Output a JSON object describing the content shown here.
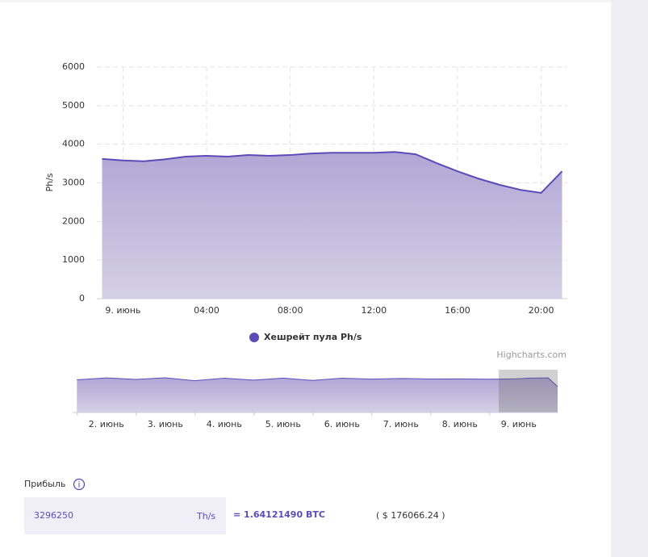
{
  "chart_data": [
    {
      "type": "area",
      "y_label": "Ph/s",
      "credits": "Highcharts.com",
      "x": [
        -1,
        0,
        1,
        2,
        3,
        4,
        5,
        6,
        7,
        8,
        9,
        10,
        11,
        12,
        13,
        14,
        15,
        16,
        17,
        18,
        19,
        20,
        21
      ],
      "series": [
        {
          "name": "Хешрейт пула Ph/s",
          "color": "#5b4bb7",
          "values": [
            3620,
            3580,
            3560,
            3610,
            3680,
            3700,
            3680,
            3720,
            3700,
            3720,
            3760,
            3780,
            3780,
            3780,
            3800,
            3740,
            3510,
            3300,
            3110,
            2950,
            2820,
            2740,
            3300
          ]
        }
      ],
      "xlim": [
        -1.25,
        21.25
      ],
      "xticks": [
        {
          "value": 0,
          "label": "9. июнь"
        },
        {
          "value": 4,
          "label": "04:00"
        },
        {
          "value": 8,
          "label": "08:00"
        },
        {
          "value": 12,
          "label": "12:00"
        },
        {
          "value": 16,
          "label": "16:00"
        },
        {
          "value": 20,
          "label": "20:00"
        }
      ],
      "ylim": [
        0,
        6000
      ],
      "yticks": [
        0,
        1000,
        2000,
        3000,
        4000,
        5000,
        6000
      ],
      "grid": true,
      "legend": "bottom"
    },
    {
      "type": "area",
      "x": [
        1.5,
        2,
        2.5,
        3,
        3.5,
        4,
        4.5,
        5,
        5.5,
        6,
        6.5,
        7,
        7.5,
        8,
        8.5,
        8.96,
        9.2,
        9.5,
        9.66
      ],
      "series": [
        {
          "name": null,
          "color": "#5b4bb7",
          "values": [
            3520,
            3720,
            3560,
            3730,
            3420,
            3690,
            3480,
            3700,
            3450,
            3690,
            3590,
            3660,
            3600,
            3610,
            3580,
            3620,
            3700,
            3720,
            2800
          ]
        }
      ],
      "xlim": [
        1.51,
        9.66
      ],
      "xticks": [
        {
          "value": 2,
          "label": "2. июнь"
        },
        {
          "value": 3,
          "label": "3. июнь"
        },
        {
          "value": 4,
          "label": "4. июнь"
        },
        {
          "value": 5,
          "label": "5. июнь"
        },
        {
          "value": 6,
          "label": "6. июнь"
        },
        {
          "value": 7,
          "label": "7. июнь"
        },
        {
          "value": 8,
          "label": "8. июнь"
        },
        {
          "value": 9,
          "label": "9. июнь"
        }
      ],
      "ylim": [
        0,
        4600
      ]
    }
  ],
  "profit": {
    "label": "Прибыль",
    "hashrate": "3296250",
    "unit": "Th/s",
    "btc": "= 1.64121490 BTC",
    "usd": "( $ 176066.24 )"
  }
}
